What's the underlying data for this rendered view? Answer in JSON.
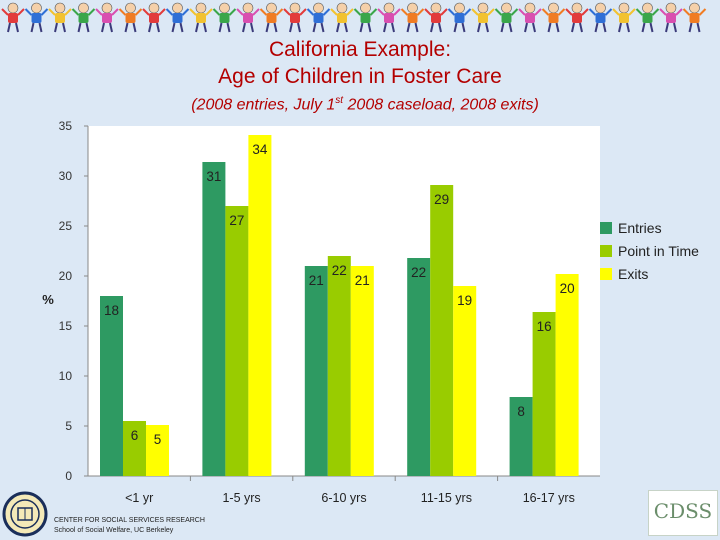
{
  "title_line1": "California Example:",
  "title_line2": "Age of Children in Foster Care",
  "subtitle": {
    "pre": "(2008 entries, July 1",
    "sup": "st",
    "post": " 2008 caseload, 2008 exits)"
  },
  "colors": {
    "Entries": "#2e9a62",
    "Point in Time": "#99cc00",
    "Exits": "#ffff00"
  },
  "chart_data": {
    "type": "bar",
    "categories": [
      "<1 yr",
      "1-5 yrs",
      "6-10 yrs",
      "11-15 yrs",
      "16-17 yrs"
    ],
    "series": [
      {
        "name": "Entries",
        "values": [
          18,
          31.4,
          21,
          21.8,
          7.9
        ],
        "labels": [
          "18",
          "31",
          "21",
          "22",
          "8"
        ]
      },
      {
        "name": "Point in Time",
        "values": [
          5.5,
          27,
          22,
          29.1,
          16.4
        ],
        "labels": [
          "6",
          "27",
          "22",
          "29",
          "16"
        ]
      },
      {
        "name": "Exits",
        "values": [
          5.1,
          34.1,
          21,
          19,
          20.2
        ],
        "labels": [
          "5",
          "34",
          "21",
          "19",
          "20"
        ]
      }
    ],
    "ylabel": "%",
    "ylim": [
      0,
      35
    ],
    "yticks": [
      0,
      5,
      10,
      15,
      20,
      25,
      30,
      35
    ],
    "legend_position": "right",
    "grid": false
  },
  "footer": {
    "org_line1": "CENTER FOR SOCIAL SERVICES RESEARCH",
    "org_line2": "School of Social Welfare, UC Berkeley",
    "logo_text": "CDSS"
  }
}
